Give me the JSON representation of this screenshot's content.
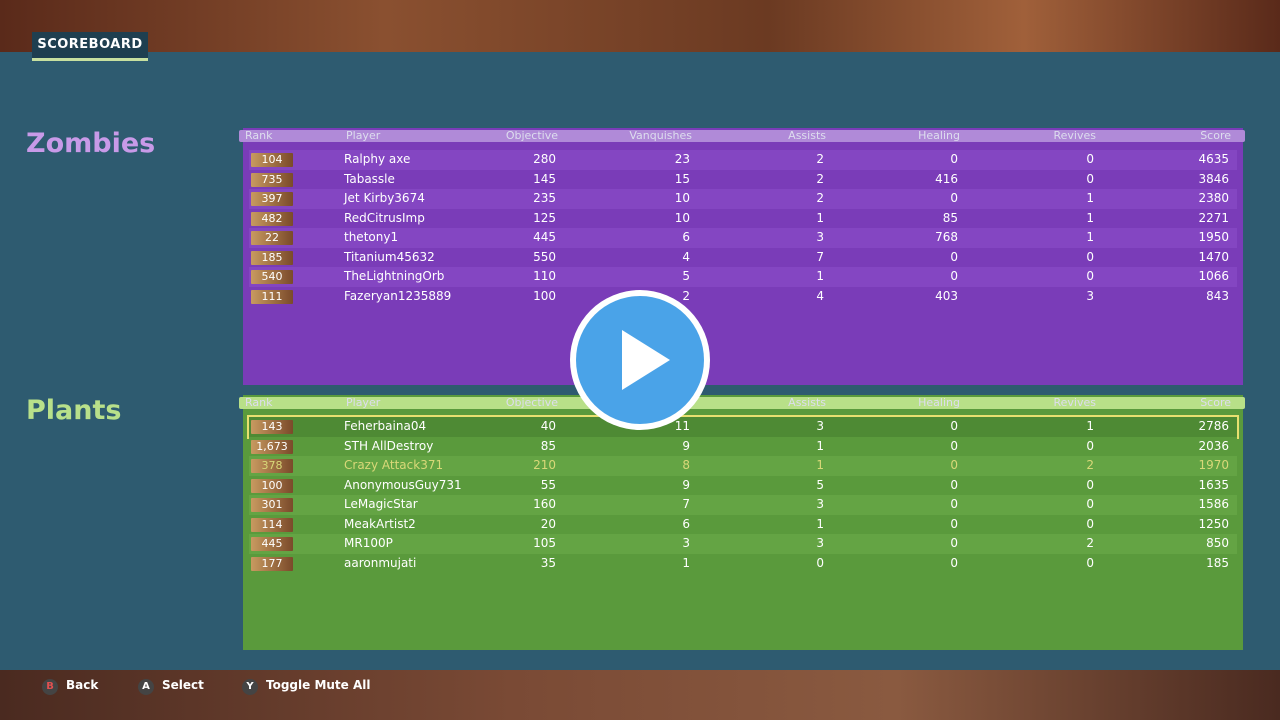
{
  "header": {
    "title": "SCOREBOARD"
  },
  "columns": [
    "Rank",
    "Player",
    "Objective",
    "Vanquishes",
    "Assists",
    "Healing",
    "Revives",
    "Score"
  ],
  "teams": [
    {
      "name": "Zombies",
      "rows": [
        [
          104,
          "Ralphy axe",
          280,
          23,
          2,
          0,
          0,
          4635
        ],
        [
          735,
          "Tabassle",
          145,
          15,
          2,
          416,
          0,
          3846
        ],
        [
          397,
          "Jet Kirby3674",
          235,
          10,
          2,
          0,
          1,
          2380
        ],
        [
          482,
          "RedCitrusImp",
          125,
          10,
          1,
          85,
          1,
          2271
        ],
        [
          22,
          "thetony1",
          445,
          6,
          3,
          768,
          1,
          1950
        ],
        [
          185,
          "Titanium45632",
          550,
          4,
          7,
          0,
          0,
          1470
        ],
        [
          540,
          "TheLightningOrb",
          110,
          5,
          1,
          0,
          0,
          1066
        ],
        [
          111,
          "Fazeryan1235889",
          100,
          2,
          4,
          403,
          3,
          843
        ]
      ]
    },
    {
      "name": "Plants",
      "rows": [
        [
          143,
          "Feherbaina04",
          40,
          11,
          3,
          0,
          1,
          2786
        ],
        [
          "1,673",
          "STH AllDestroy",
          85,
          9,
          1,
          0,
          0,
          2036
        ],
        [
          378,
          "Crazy Attack371",
          210,
          8,
          1,
          0,
          2,
          1970
        ],
        [
          100,
          "AnonymousGuy731",
          55,
          9,
          5,
          0,
          0,
          1635
        ],
        [
          301,
          "LeMagicStar",
          160,
          7,
          3,
          0,
          0,
          1586
        ],
        [
          114,
          "MeakArtist2",
          20,
          6,
          1,
          0,
          0,
          1250
        ],
        [
          445,
          "MR100P",
          105,
          3,
          3,
          0,
          2,
          850
        ],
        [
          177,
          "aaronmujati",
          35,
          1,
          0,
          0,
          0,
          185
        ]
      ]
    }
  ],
  "footer": [
    {
      "key": "B",
      "label": "Back"
    },
    {
      "key": "A",
      "label": "Select"
    },
    {
      "key": "Y",
      "label": "Toggle Mute All"
    }
  ]
}
